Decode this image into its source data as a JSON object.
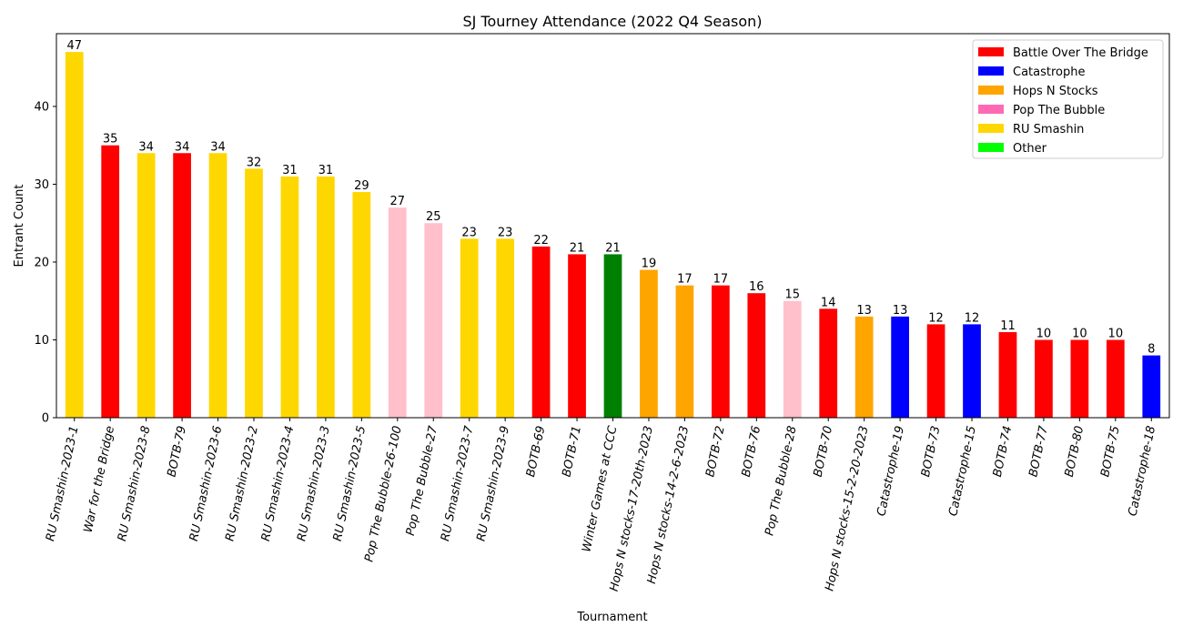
{
  "chart_data": {
    "type": "bar",
    "title": "SJ Tourney Attendance (2022 Q4 Season)",
    "xlabel": "Tournament",
    "ylabel": "Entrant Count",
    "ylim": [
      0,
      49.35
    ],
    "yticks": [
      0,
      10,
      20,
      30,
      40
    ],
    "grid": false,
    "legend_position": "top-right",
    "legend": [
      {
        "name": "Battle Over The Bridge",
        "color": "#ff0000"
      },
      {
        "name": "Catastrophe",
        "color": "#0000ff"
      },
      {
        "name": "Hops N Stocks",
        "color": "#ffa500"
      },
      {
        "name": "Pop The Bubble",
        "color": "#ff69b4"
      },
      {
        "name": "RU Smashin",
        "color": "#ffd700"
      },
      {
        "name": "Other",
        "color": "#00ff00"
      }
    ],
    "categories": [
      "RU Smashin-2023-1",
      "War for the Bridge",
      "RU Smashin-2023-8",
      "BOTB-79",
      "RU Smashin-2023-6",
      "RU Smashin-2023-2",
      "RU Smashin-2023-4",
      "RU Smashin-2023-3",
      "RU Smashin-2023-5",
      "Pop The Bubble-26-100",
      "Pop The Bubble-27",
      "RU Smashin-2023-7",
      "RU Smashin-2023-9",
      "BOTB-69",
      "BOTB-71",
      "Winter Games at CCC",
      "Hops N stocks-17-20th-2023",
      "Hops N stocks-14-2-6-2023",
      "BOTB-72",
      "BOTB-76",
      "Pop The Bubble-28",
      "BOTB-70",
      "Hops N stocks-15-2-20-2023",
      "Catastrophe-19",
      "BOTB-73",
      "Catastrophe-15",
      "BOTB-74",
      "BOTB-77",
      "BOTB-80",
      "BOTB-75",
      "Catastrophe-18"
    ],
    "values": [
      47,
      35,
      34,
      34,
      34,
      32,
      31,
      31,
      29,
      27,
      25,
      23,
      23,
      22,
      21,
      21,
      19,
      17,
      17,
      16,
      15,
      14,
      13,
      13,
      12,
      12,
      11,
      10,
      10,
      10,
      8
    ],
    "bar_colors": [
      "#ffd700",
      "#ff0000",
      "#ffd700",
      "#ff0000",
      "#ffd700",
      "#ffd700",
      "#ffd700",
      "#ffd700",
      "#ffd700",
      "#ffc0cb",
      "#ffc0cb",
      "#ffd700",
      "#ffd700",
      "#ff0000",
      "#ff0000",
      "#008000",
      "#ffa500",
      "#ffa500",
      "#ff0000",
      "#ff0000",
      "#ffc0cb",
      "#ff0000",
      "#ffa500",
      "#0000ff",
      "#ff0000",
      "#0000ff",
      "#ff0000",
      "#ff0000",
      "#ff0000",
      "#ff0000",
      "#0000ff"
    ]
  }
}
